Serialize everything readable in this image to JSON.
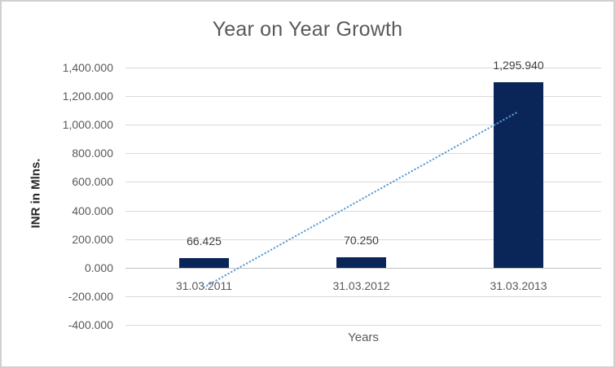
{
  "chart_data": {
    "type": "bar",
    "title": "Year on Year Growth",
    "xlabel": "Years",
    "ylabel": "INR in Mlns.",
    "categories": [
      "31.03.2011",
      "31.03.2012",
      "31.03.2013"
    ],
    "values": [
      66.425,
      70.25,
      1295.94
    ],
    "data_labels": [
      "66.425",
      "70.250",
      "1,295.940"
    ],
    "ylim": [
      -400,
      1400
    ],
    "ytick_step": 200,
    "ytick_labels": [
      "1,400.000",
      "1,200.000",
      "1,000.000",
      "800.000",
      "600.000",
      "400.000",
      "200.000",
      "0.000",
      "-200.000",
      "-400.000"
    ],
    "grid": true,
    "legend": "none",
    "trendline": {
      "type": "linear",
      "style": "dotted",
      "y_at_first_category": -137.22,
      "y_at_last_category": 1092.3
    },
    "colors": {
      "bar": "#0A2557",
      "trendline": "#5B9BD5",
      "gridline": "#D9D9D9",
      "axis_line": "#BFBFBF",
      "title_text": "#595959",
      "tick_text": "#595959",
      "data_label_text": "#404040",
      "axis_title_text": "#262626",
      "border": "#D0D0D0"
    }
  }
}
